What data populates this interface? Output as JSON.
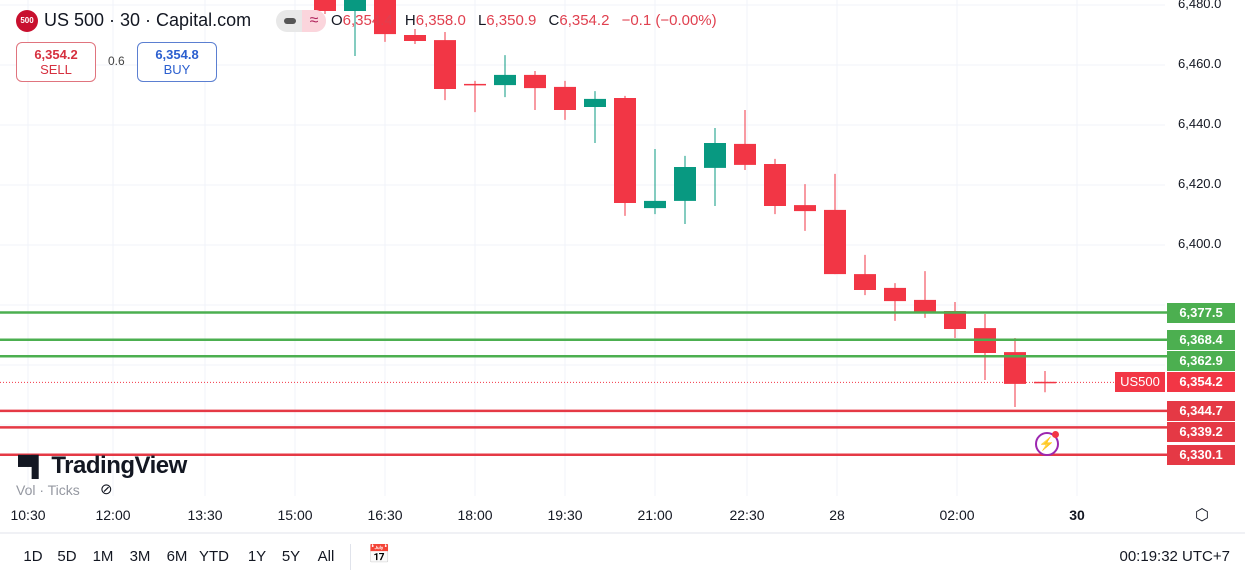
{
  "header": {
    "symbol_badge": "500",
    "title": "US 500 · 30 · Capital.com",
    "ohlc": {
      "o_label": "O",
      "o": "6,354.4",
      "h_label": "H",
      "h": "6,358.0",
      "l_label": "L",
      "l": "6,350.9",
      "c_label": "C",
      "c": "6,354.2",
      "change": "−0.1 (−0.00%)"
    },
    "sell": {
      "price": "6,354.2",
      "label": "SELL"
    },
    "spread": "0.6",
    "buy": {
      "price": "6,354.8",
      "label": "BUY"
    }
  },
  "watermark": {
    "brand": "TradingView",
    "volume_label": "Vol · Ticks"
  },
  "footer": {
    "ranges": [
      "1D",
      "5D",
      "1M",
      "3M",
      "6M",
      "YTD",
      "1Y",
      "5Y",
      "All"
    ],
    "clock": "00:19:32 UTC+7"
  },
  "colors": {
    "up": "#089981",
    "down": "#f23645",
    "support": "#e53945",
    "resistance": "#4caf50",
    "accent": "#2962ff"
  },
  "chart_data": {
    "type": "candlestick",
    "timeframe": "30",
    "grid": true,
    "y_ticks": [
      "6,480.0",
      "6,460.0",
      "6,440.0",
      "6,420.0",
      "6,400.0"
    ],
    "y_tick_values": [
      6480,
      6460,
      6440,
      6420,
      6400
    ],
    "ylim": [
      6326,
      6481
    ],
    "x_ticks": [
      "10:30",
      "12:00",
      "13:30",
      "15:00",
      "16:30",
      "18:00",
      "19:30",
      "21:00",
      "22:30",
      "28",
      "02:00",
      "30"
    ],
    "candles": [
      {
        "t": "15:30",
        "o": 6482,
        "h": 6484,
        "l": 6477,
        "c": 6478
      },
      {
        "t": "16:00",
        "o": 6478,
        "h": 6483,
        "l": 6463,
        "c": 6482
      },
      {
        "t": "16:30",
        "o": 6482,
        "h": 6484,
        "l": 6467.7,
        "c": 6470.3
      },
      {
        "t": "17:00",
        "o": 6470,
        "h": 6472,
        "l": 6467,
        "c": 6468
      },
      {
        "t": "17:30",
        "o": 6468.3,
        "h": 6471,
        "l": 6448.3,
        "c": 6452
      },
      {
        "t": "18:00",
        "o": 6453.7,
        "h": 6454.7,
        "l": 6444.3,
        "c": 6453.3
      },
      {
        "t": "18:30",
        "o": 6453.3,
        "h": 6463.3,
        "l": 6449.3,
        "c": 6456.7
      },
      {
        "t": "19:00",
        "o": 6456.7,
        "h": 6458,
        "l": 6445,
        "c": 6452.3
      },
      {
        "t": "19:30",
        "o": 6452.7,
        "h": 6454.7,
        "l": 6441.7,
        "c": 6445
      },
      {
        "t": "20:00",
        "o": 6446,
        "h": 6451.3,
        "l": 6434,
        "c": 6448.7
      },
      {
        "t": "20:30",
        "o": 6449,
        "h": 6449.7,
        "l": 6409.7,
        "c": 6414
      },
      {
        "t": "21:00",
        "o": 6412.3,
        "h": 6432,
        "l": 6410.3,
        "c": 6414.7
      },
      {
        "t": "21:30",
        "o": 6414.7,
        "h": 6429.7,
        "l": 6407,
        "c": 6426
      },
      {
        "t": "22:00",
        "o": 6425.7,
        "h": 6439,
        "l": 6413,
        "c": 6434
      },
      {
        "t": "22:30",
        "o": 6433.7,
        "h": 6445,
        "l": 6425,
        "c": 6426.7
      },
      {
        "t": "23:00",
        "o": 6427,
        "h": 6428.7,
        "l": 6410.3,
        "c": 6413
      },
      {
        "t": "23:30",
        "o": 6413.3,
        "h": 6420.3,
        "l": 6404.7,
        "c": 6411.3
      },
      {
        "t": "00:00",
        "o": 6411.7,
        "h": 6423.7,
        "l": 6390.3,
        "c": 6390.3
      },
      {
        "t": "00:30",
        "o": 6390.3,
        "h": 6396.7,
        "l": 6383.3,
        "c": 6385
      },
      {
        "t": "01:00",
        "o": 6385.7,
        "h": 6387.3,
        "l": 6374.7,
        "c": 6381.3
      },
      {
        "t": "01:30",
        "o": 6381.7,
        "h": 6391.3,
        "l": 6375.7,
        "c": 6377.7
      },
      {
        "t": "02:00",
        "o": 6378,
        "h": 6381,
        "l": 6369,
        "c": 6372
      },
      {
        "t": "02:30",
        "o": 6372.3,
        "h": 6377,
        "l": 6355,
        "c": 6364
      },
      {
        "t": "03:00",
        "o": 6364.3,
        "h": 6369,
        "l": 6346,
        "c": 6353.7
      },
      {
        "t": "03:30",
        "o": 6354.4,
        "h": 6358,
        "l": 6350.9,
        "c": 6354.2
      }
    ],
    "levels": [
      {
        "value": 6377.5,
        "label": "6,377.5",
        "kind": "resistance"
      },
      {
        "value": 6368.4,
        "label": "6,368.4",
        "kind": "resistance"
      },
      {
        "value": 6362.9,
        "label": "6,362.9",
        "kind": "resistance"
      },
      {
        "value": 6344.7,
        "label": "6,344.7",
        "kind": "support"
      },
      {
        "value": 6339.2,
        "label": "6,339.2",
        "kind": "support"
      },
      {
        "value": 6330.1,
        "label": "6,330.1",
        "kind": "support"
      }
    ],
    "last_price": {
      "value": 6354.2,
      "label": "6,354.2",
      "symbol": "US500"
    }
  }
}
